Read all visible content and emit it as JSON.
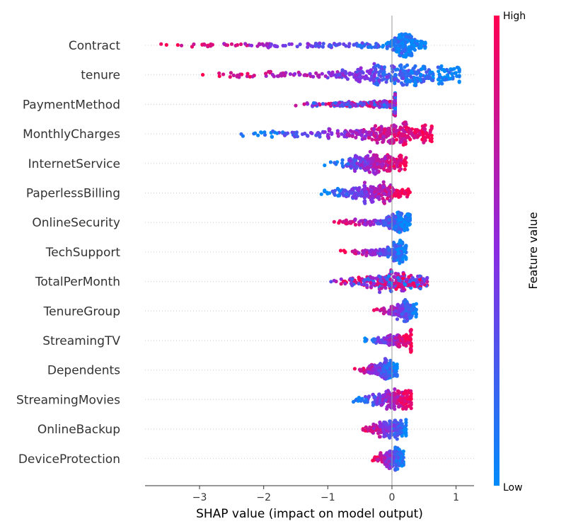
{
  "chart_data": {
    "type": "scatter",
    "subtype": "shap-beeswarm",
    "title": "",
    "xlabel": "SHAP value (impact on model output)",
    "xlim": [
      -3.85,
      1.28
    ],
    "xticks": [
      -3,
      -2,
      -1,
      0,
      1
    ],
    "colorbar": {
      "title": "Feature value",
      "high_label": "High",
      "low_label": "Low",
      "low_color": "#008bfb",
      "high_color": "#ff0051",
      "mid_color": "#8a2be2"
    },
    "features": [
      {
        "name": "Contract",
        "lo": -3.6,
        "hi": 0.52,
        "center": 0.2,
        "spread": 0.13,
        "peak": 0.2,
        "lowAt": "right",
        "n": 320
      },
      {
        "name": "tenure",
        "lo": -2.95,
        "hi": 1.05,
        "center": 0.15,
        "spread": 0.55,
        "peak": 0.16,
        "lowAt": "right",
        "n": 360
      },
      {
        "name": "PaymentMethod",
        "lo": -1.5,
        "hi": 0.05,
        "center": -0.15,
        "spread": 0.35,
        "peak": 0.15,
        "lowAt": "mixed",
        "n": 240
      },
      {
        "name": "MonthlyCharges",
        "lo": -2.35,
        "hi": 0.62,
        "center": 0.0,
        "spread": 0.35,
        "peak": 0.12,
        "lowAt": "left",
        "n": 320
      },
      {
        "name": "InternetService",
        "lo": -1.05,
        "hi": 0.22,
        "center": -0.3,
        "spread": 0.25,
        "peak": 0.12,
        "lowAt": "left",
        "n": 240
      },
      {
        "name": "PaperlessBilling",
        "lo": -1.1,
        "hi": 0.28,
        "center": -0.4,
        "spread": 0.25,
        "peak": 0.12,
        "lowAt": "left",
        "n": 240
      },
      {
        "name": "OnlineSecurity",
        "lo": -0.9,
        "hi": 0.28,
        "center": 0.1,
        "spread": 0.1,
        "peak": 0.15,
        "lowAt": "right",
        "n": 240
      },
      {
        "name": "TechSupport",
        "lo": -0.8,
        "hi": 0.22,
        "center": 0.1,
        "spread": 0.08,
        "peak": 0.15,
        "lowAt": "right",
        "n": 220
      },
      {
        "name": "TotalPerMonth",
        "lo": -0.95,
        "hi": 0.55,
        "center": -0.05,
        "spread": 0.25,
        "peak": 0.15,
        "lowAt": "mixed",
        "n": 280
      },
      {
        "name": "TenureGroup",
        "lo": -0.28,
        "hi": 0.38,
        "center": 0.2,
        "spread": 0.08,
        "peak": 0.1,
        "lowAt": "right",
        "n": 200
      },
      {
        "name": "StreamingTV",
        "lo": -0.42,
        "hi": 0.3,
        "center": 0.05,
        "spread": 0.15,
        "peak": 0.12,
        "lowAt": "left",
        "n": 220
      },
      {
        "name": "Dependents",
        "lo": -0.58,
        "hi": 0.08,
        "center": -0.1,
        "spread": 0.12,
        "peak": 0.12,
        "lowAt": "right",
        "n": 220
      },
      {
        "name": "StreamingMovies",
        "lo": -0.6,
        "hi": 0.3,
        "center": 0.05,
        "spread": 0.15,
        "peak": 0.12,
        "lowAt": "left",
        "n": 220
      },
      {
        "name": "OnlineBackup",
        "lo": -0.45,
        "hi": 0.22,
        "center": 0.0,
        "spread": 0.15,
        "peak": 0.14,
        "lowAt": "right",
        "n": 220
      },
      {
        "name": "DeviceProtection",
        "lo": -0.3,
        "hi": 0.18,
        "center": 0.0,
        "spread": 0.1,
        "peak": 0.12,
        "lowAt": "right",
        "n": 200
      }
    ]
  }
}
